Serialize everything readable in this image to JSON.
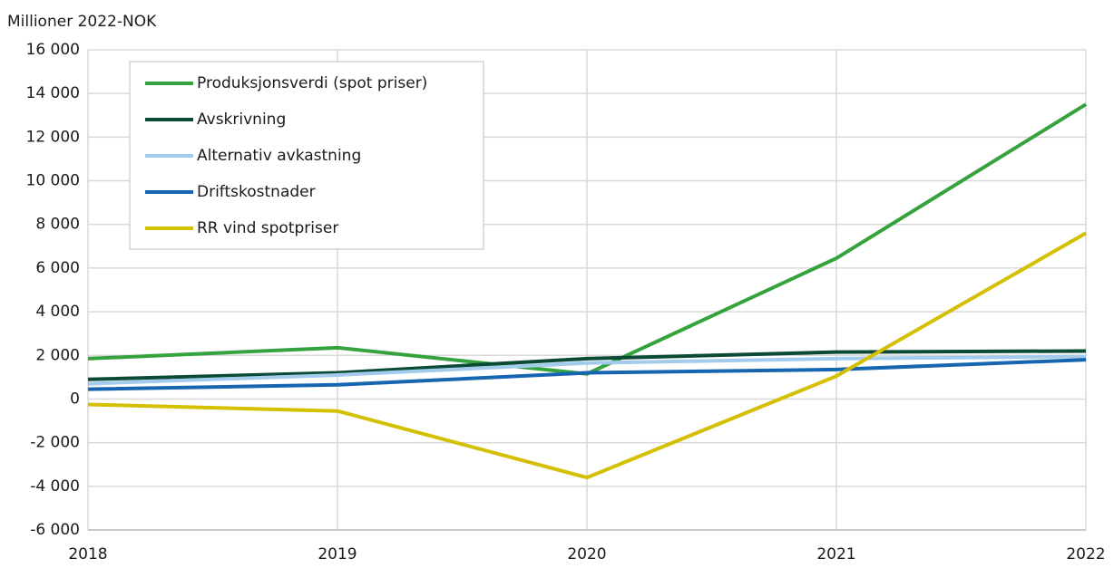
{
  "chart_data": {
    "type": "line",
    "y_axis_label": "Millioner 2022-NOK",
    "x": [
      2018,
      2019,
      2020,
      2021,
      2022
    ],
    "xlim": [
      2018,
      2022
    ],
    "xticks": [
      2018,
      2019,
      2020,
      2021,
      2022
    ],
    "ylim": [
      -6000,
      16000
    ],
    "yticks": [
      {
        "value": -6000,
        "label": "-6 000"
      },
      {
        "value": -4000,
        "label": "-4 000"
      },
      {
        "value": -2000,
        "label": "-2 000"
      },
      0,
      {
        "value": 2000,
        "label": "2 000"
      },
      {
        "value": 4000,
        "label": "4 000"
      },
      {
        "value": 6000,
        "label": "6 000"
      },
      {
        "value": 8000,
        "label": "8 000"
      },
      {
        "value": 10000,
        "label": "10 000"
      },
      {
        "value": 12000,
        "label": "12 000"
      },
      {
        "value": 14000,
        "label": "14 000"
      },
      {
        "value": 16000,
        "label": "16 000"
      }
    ],
    "grid": true,
    "legend": "upper left",
    "series": [
      {
        "name": "Produksjonsverdi (spot priser)",
        "color": "#34a33d",
        "values": [
          1850,
          2350,
          1150,
          6450,
          13500
        ]
      },
      {
        "name": "Avskrivning",
        "color": "#0b4a35",
        "values": [
          900,
          1200,
          1850,
          2150,
          2200
        ]
      },
      {
        "name": "Alternativ avkastning",
        "color": "#a3cbec",
        "values": [
          700,
          1100,
          1650,
          1850,
          1950
        ]
      },
      {
        "name": "Driftskostnader",
        "color": "#1565b0",
        "values": [
          450,
          650,
          1200,
          1350,
          1800
        ]
      },
      {
        "name": "RR vind spotpriser",
        "color": "#d4bf00",
        "values": [
          -250,
          -550,
          -3600,
          1050,
          7600
        ]
      }
    ]
  }
}
